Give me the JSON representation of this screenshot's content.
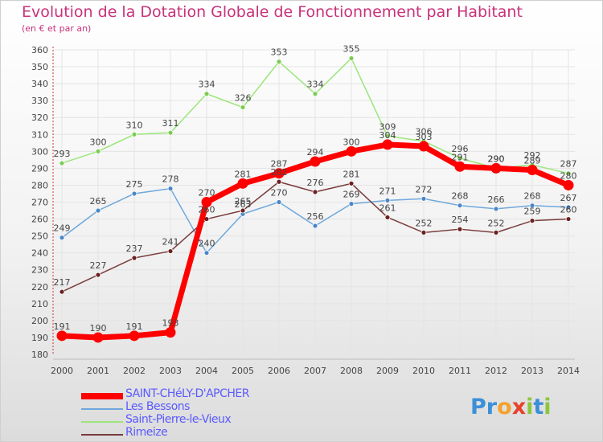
{
  "header": {
    "title": "Evolution de la Dotation Globale de Fonctionnement par Habitant",
    "subtitle": "(en € et par an)"
  },
  "logo": {
    "text": "Proxiti",
    "letters": [
      "P",
      "r",
      "o",
      "x",
      "i",
      "t",
      "i"
    ]
  },
  "chart_data": {
    "type": "line",
    "title": "Evolution de la Dotation Globale de Fonctionnement par Habitant",
    "subtitle": "(en € et par an)",
    "xlabel": "",
    "ylabel": "",
    "x": [
      "2000",
      "2001",
      "2002",
      "2003",
      "2004",
      "2005",
      "2006",
      "2007",
      "2008",
      "2009",
      "2010",
      "2011",
      "2012",
      "2013",
      "2014"
    ],
    "ylim": [
      180,
      360
    ],
    "yticks": [
      180,
      190,
      200,
      210,
      220,
      230,
      240,
      250,
      260,
      270,
      280,
      290,
      300,
      310,
      320,
      330,
      340,
      350,
      360
    ],
    "grid": true,
    "legend_position": "bottom-left",
    "series": [
      {
        "name": "SAINT-CHéLY-D'APCHER",
        "color": "#ff0000",
        "marker": "#ff0000",
        "width": 7,
        "values": [
          191,
          190,
          191,
          193,
          270,
          281,
          287,
          294,
          300,
          304,
          303,
          291,
          290,
          289,
          280
        ]
      },
      {
        "name": "Les Bessons",
        "color": "#6fa8dc",
        "marker": "#4a86c8",
        "width": 1.5,
        "values": [
          249,
          265,
          275,
          278,
          240,
          263,
          270,
          256,
          269,
          271,
          272,
          268,
          266,
          268,
          267
        ]
      },
      {
        "name": "Saint-Pierre-le-Vieux",
        "color": "#9be67a",
        "marker": "#7ccc52",
        "width": 1.5,
        "values": [
          293,
          300,
          310,
          311,
          334,
          326,
          353,
          334,
          355,
          309,
          306,
          296,
          290,
          292,
          287
        ]
      },
      {
        "name": "Rimeize",
        "color": "#7a3b3b",
        "marker": "#6b2020",
        "width": 1.5,
        "values": [
          217,
          227,
          237,
          241,
          260,
          265,
          282,
          276,
          281,
          261,
          252,
          254,
          252,
          259,
          260
        ]
      }
    ]
  }
}
